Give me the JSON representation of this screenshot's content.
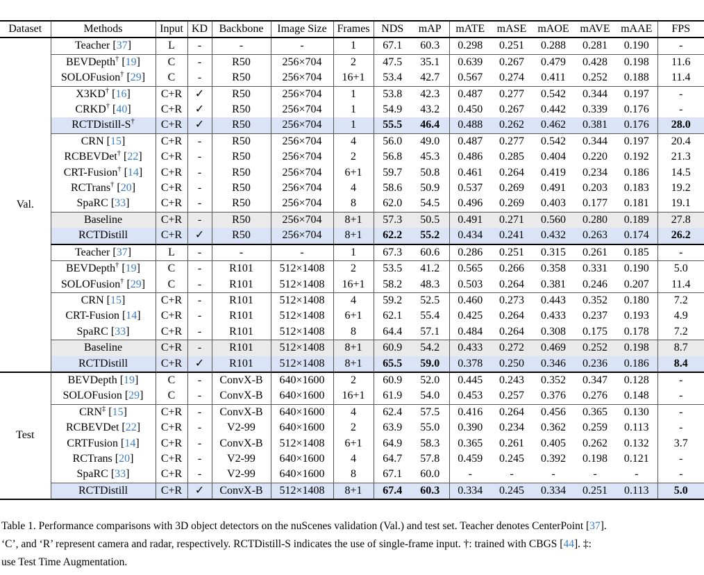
{
  "colors": {
    "highlight_blue": "#dbe3f6",
    "highlight_gray": "#eaeaea",
    "citation_blue": "#3c7dbf"
  },
  "table": {
    "columns": [
      {
        "label": "Dataset",
        "vr": true
      },
      {
        "label": "Methods",
        "vr": true
      },
      {
        "label": "Input",
        "vr": true
      },
      {
        "label": "KD",
        "vr": true
      },
      {
        "label": "Backbone",
        "vr": true
      },
      {
        "label": "Image Size",
        "vr": true
      },
      {
        "label": "Frames",
        "vr": true
      },
      {
        "label": "NDS",
        "vr": false
      },
      {
        "label": "mAP",
        "vr": true
      },
      {
        "label": "mATE",
        "vr": false
      },
      {
        "label": "mASE",
        "vr": false
      },
      {
        "label": "mAOE",
        "vr": false
      },
      {
        "label": "mAVE",
        "vr": false
      },
      {
        "label": "mAAE",
        "vr": true
      },
      {
        "label": "FPS",
        "vr": false
      }
    ],
    "sections": [
      {
        "dataset": "Val.",
        "rows": [
          {
            "method": {
              "name": "Teacher",
              "sup": "",
              "cite": "37"
            },
            "input": "L",
            "kd": "-",
            "backbone": "-",
            "image_size": "-",
            "frames": "1",
            "nds": "67.1",
            "map": "60.3",
            "mate": "0.298",
            "mase": "0.251",
            "maoe": "0.288",
            "mave": "0.281",
            "maae": "0.190",
            "fps": "-"
          },
          {
            "method": {
              "name": "BEVDepth",
              "sup": "†",
              "cite": "19"
            },
            "input": "C",
            "kd": "-",
            "backbone": "R50",
            "image_size": "256×704",
            "frames": "2",
            "nds": "47.5",
            "map": "35.1",
            "mate": "0.639",
            "mase": "0.267",
            "maoe": "0.479",
            "mave": "0.428",
            "maae": "0.198",
            "fps": "11.6",
            "rule": "thin"
          },
          {
            "method": {
              "name": "SOLOFusion",
              "sup": "†",
              "cite": "29"
            },
            "input": "C",
            "kd": "-",
            "backbone": "R50",
            "image_size": "256×704",
            "frames": "16+1",
            "nds": "53.4",
            "map": "42.7",
            "mate": "0.567",
            "mase": "0.274",
            "maoe": "0.411",
            "mave": "0.252",
            "maae": "0.188",
            "fps": "11.4"
          },
          {
            "method": {
              "name": "X3KD",
              "sup": "†",
              "cite": "16"
            },
            "input": "C+R",
            "kd": "✓",
            "backbone": "R50",
            "image_size": "256×704",
            "frames": "1",
            "nds": "53.8",
            "map": "42.3",
            "mate": "0.487",
            "mase": "0.277",
            "maoe": "0.542",
            "mave": "0.344",
            "maae": "0.197",
            "fps": "-",
            "rule": "thin"
          },
          {
            "method": {
              "name": "CRKD",
              "sup": "†",
              "cite": "40"
            },
            "input": "C+R",
            "kd": "✓",
            "backbone": "R50",
            "image_size": "256×704",
            "frames": "1",
            "nds": "54.9",
            "map": "43.2",
            "mate": "0.450",
            "mase": "0.267",
            "maoe": "0.442",
            "mave": "0.339",
            "maae": "0.176",
            "fps": "-"
          },
          {
            "method": {
              "name": "RCTDistill-S",
              "sup": "†",
              "cite": ""
            },
            "input": "C+R",
            "kd": "✓",
            "backbone": "R50",
            "image_size": "256×704",
            "frames": "1",
            "nds": "55.5",
            "map": "46.4",
            "mate": "0.488",
            "mase": "0.262",
            "maoe": "0.462",
            "mave": "0.381",
            "maae": "0.176",
            "fps": "28.0",
            "hl": "blue",
            "bold": true
          },
          {
            "method": {
              "name": "CRN",
              "sup": "",
              "cite": "15"
            },
            "input": "C+R",
            "kd": "-",
            "backbone": "R50",
            "image_size": "256×704",
            "frames": "4",
            "nds": "56.0",
            "map": "49.0",
            "mate": "0.487",
            "mase": "0.277",
            "maoe": "0.542",
            "mave": "0.344",
            "maae": "0.197",
            "fps": "20.4",
            "rule": "thin"
          },
          {
            "method": {
              "name": "RCBEVDet",
              "sup": "†",
              "cite": "22"
            },
            "input": "C+R",
            "kd": "-",
            "backbone": "R50",
            "image_size": "256×704",
            "frames": "2",
            "nds": "56.8",
            "map": "45.3",
            "mate": "0.486",
            "mase": "0.285",
            "maoe": "0.404",
            "mave": "0.220",
            "maae": "0.192",
            "fps": "21.3"
          },
          {
            "method": {
              "name": "CRT-Fusion",
              "sup": "†",
              "cite": "14"
            },
            "input": "C+R",
            "kd": "-",
            "backbone": "R50",
            "image_size": "256×704",
            "frames": "6+1",
            "nds": "59.7",
            "map": "50.8",
            "mate": "0.461",
            "mase": "0.264",
            "maoe": "0.419",
            "mave": "0.234",
            "maae": "0.186",
            "fps": "14.5"
          },
          {
            "method": {
              "name": "RCTrans",
              "sup": "†",
              "cite": "20"
            },
            "input": "C+R",
            "kd": "-",
            "backbone": "R50",
            "image_size": "256×704",
            "frames": "4",
            "nds": "58.6",
            "map": "50.9",
            "mate": "0.537",
            "mase": "0.269",
            "maoe": "0.491",
            "mave": "0.203",
            "maae": "0.183",
            "fps": "19.2"
          },
          {
            "method": {
              "name": "SpaRC",
              "sup": "",
              "cite": "33"
            },
            "input": "C+R",
            "kd": "-",
            "backbone": "R50",
            "image_size": "256×704",
            "frames": "8",
            "nds": "62.0",
            "map": "54.5",
            "mate": "0.496",
            "mase": "0.269",
            "maoe": "0.403",
            "mave": "0.177",
            "maae": "0.181",
            "fps": "19.1"
          },
          {
            "method": {
              "name": "Baseline",
              "sup": "",
              "cite": ""
            },
            "input": "C+R",
            "kd": "-",
            "backbone": "R50",
            "image_size": "256×704",
            "frames": "8+1",
            "nds": "57.3",
            "map": "50.5",
            "mate": "0.491",
            "mase": "0.271",
            "maoe": "0.560",
            "mave": "0.280",
            "maae": "0.189",
            "fps": "27.8",
            "hl": "gray",
            "rule": "thin"
          },
          {
            "method": {
              "name": "RCTDistill",
              "sup": "",
              "cite": ""
            },
            "input": "C+R",
            "kd": "✓",
            "backbone": "R50",
            "image_size": "256×704",
            "frames": "8+1",
            "nds": "62.2",
            "map": "55.2",
            "mate": "0.434",
            "mase": "0.241",
            "maoe": "0.432",
            "mave": "0.263",
            "maae": "0.174",
            "fps": "26.2",
            "hl": "blue",
            "bold": true
          },
          {
            "method": {
              "name": "Teacher",
              "sup": "",
              "cite": "37"
            },
            "input": "L",
            "kd": "-",
            "backbone": "-",
            "image_size": "-",
            "frames": "1",
            "nds": "67.3",
            "map": "60.6",
            "mate": "0.286",
            "mase": "0.251",
            "maoe": "0.315",
            "mave": "0.261",
            "maae": "0.185",
            "fps": "-",
            "rule": "thick"
          },
          {
            "method": {
              "name": "BEVDepth",
              "sup": "†",
              "cite": "19"
            },
            "input": "C",
            "kd": "-",
            "backbone": "R101",
            "image_size": "512×1408",
            "frames": "2",
            "nds": "53.5",
            "map": "41.2",
            "mate": "0.565",
            "mase": "0.266",
            "maoe": "0.358",
            "mave": "0.331",
            "maae": "0.190",
            "fps": "5.0",
            "rule": "thin"
          },
          {
            "method": {
              "name": "SOLOFusion",
              "sup": "†",
              "cite": "29"
            },
            "input": "C",
            "kd": "-",
            "backbone": "R101",
            "image_size": "512×1408",
            "frames": "16+1",
            "nds": "58.2",
            "map": "48.3",
            "mate": "0.503",
            "mase": "0.264",
            "maoe": "0.381",
            "mave": "0.246",
            "maae": "0.207",
            "fps": "11.4"
          },
          {
            "method": {
              "name": "CRN",
              "sup": "",
              "cite": "15"
            },
            "input": "C+R",
            "kd": "-",
            "backbone": "R101",
            "image_size": "512×1408",
            "frames": "4",
            "nds": "59.2",
            "map": "52.5",
            "mate": "0.460",
            "mase": "0.273",
            "maoe": "0.443",
            "mave": "0.352",
            "maae": "0.180",
            "fps": "7.2",
            "rule": "thin"
          },
          {
            "method": {
              "name": "CRT-Fusion",
              "sup": "",
              "cite": "14"
            },
            "input": "C+R",
            "kd": "-",
            "backbone": "R101",
            "image_size": "512×1408",
            "frames": "6+1",
            "nds": "62.1",
            "map": "55.4",
            "mate": "0.425",
            "mase": "0.264",
            "maoe": "0.433",
            "mave": "0.237",
            "maae": "0.193",
            "fps": "4.9"
          },
          {
            "method": {
              "name": "SpaRC",
              "sup": "",
              "cite": "33"
            },
            "input": "C+R",
            "kd": "-",
            "backbone": "R101",
            "image_size": "512×1408",
            "frames": "8",
            "nds": "64.4",
            "map": "57.1",
            "mate": "0.484",
            "mase": "0.264",
            "maoe": "0.308",
            "mave": "0.175",
            "maae": "0.178",
            "fps": "7.2"
          },
          {
            "method": {
              "name": "Baseline",
              "sup": "",
              "cite": ""
            },
            "input": "C+R",
            "kd": "-",
            "backbone": "R101",
            "image_size": "512×1408",
            "frames": "8+1",
            "nds": "60.9",
            "map": "54.2",
            "mate": "0.433",
            "mase": "0.272",
            "maoe": "0.469",
            "mave": "0.252",
            "maae": "0.198",
            "fps": "8.7",
            "hl": "gray",
            "rule": "thin"
          },
          {
            "method": {
              "name": "RCTDistill",
              "sup": "",
              "cite": ""
            },
            "input": "C+R",
            "kd": "✓",
            "backbone": "R101",
            "image_size": "512×1408",
            "frames": "8+1",
            "nds": "65.5",
            "map": "59.0",
            "mate": "0.378",
            "mase": "0.250",
            "maoe": "0.346",
            "mave": "0.236",
            "maae": "0.186",
            "fps": "8.4",
            "hl": "blue",
            "bold": true
          }
        ]
      },
      {
        "dataset": "Test",
        "rows": [
          {
            "method": {
              "name": "BEVDepth",
              "sup": "",
              "cite": "19"
            },
            "input": "C",
            "kd": "-",
            "backbone": "ConvX-B",
            "image_size": "640×1600",
            "frames": "2",
            "nds": "60.9",
            "map": "52.0",
            "mate": "0.445",
            "mase": "0.243",
            "maoe": "0.352",
            "mave": "0.347",
            "maae": "0.128",
            "fps": "-",
            "rule": "thick"
          },
          {
            "method": {
              "name": "SOLOFusion",
              "sup": "",
              "cite": "29"
            },
            "input": "C",
            "kd": "-",
            "backbone": "ConvX-B",
            "image_size": "640×1600",
            "frames": "16+1",
            "nds": "61.9",
            "map": "54.0",
            "mate": "0.453",
            "mase": "0.257",
            "maoe": "0.376",
            "mave": "0.276",
            "maae": "0.148",
            "fps": "-"
          },
          {
            "method": {
              "name": "CRN",
              "sup": "‡",
              "cite": "15"
            },
            "input": "C+R",
            "kd": "-",
            "backbone": "ConvX-B",
            "image_size": "640×1600",
            "frames": "4",
            "nds": "62.4",
            "map": "57.5",
            "mate": "0.416",
            "mase": "0.264",
            "maoe": "0.456",
            "mave": "0.365",
            "maae": "0.130",
            "fps": "-",
            "rule": "thin"
          },
          {
            "method": {
              "name": "RCBEVDet",
              "sup": "",
              "cite": "22"
            },
            "input": "C+R",
            "kd": "-",
            "backbone": "V2-99",
            "image_size": "640×1600",
            "frames": "2",
            "nds": "63.9",
            "map": "55.0",
            "mate": "0.390",
            "mase": "0.234",
            "maoe": "0.362",
            "mave": "0.259",
            "maae": "0.113",
            "fps": "-"
          },
          {
            "method": {
              "name": "CRTFusion",
              "sup": "",
              "cite": "14"
            },
            "input": "C+R",
            "kd": "-",
            "backbone": "ConvX-B",
            "image_size": "512×1408",
            "frames": "6+1",
            "nds": "64.9",
            "map": "58.3",
            "mate": "0.365",
            "mase": "0.261",
            "maoe": "0.405",
            "mave": "0.262",
            "maae": "0.132",
            "fps": "3.7"
          },
          {
            "method": {
              "name": "RCTrans",
              "sup": "",
              "cite": "20"
            },
            "input": "C+R",
            "kd": "-",
            "backbone": "V2-99",
            "image_size": "640×1600",
            "frames": "4",
            "nds": "64.7",
            "map": "57.8",
            "mate": "0.459",
            "mase": "0.245",
            "maoe": "0.392",
            "mave": "0.198",
            "maae": "0.121",
            "fps": "-"
          },
          {
            "method": {
              "name": "SpaRC",
              "sup": "",
              "cite": "33"
            },
            "input": "C+R",
            "kd": "-",
            "backbone": "V2-99",
            "image_size": "640×1600",
            "frames": "8",
            "nds": "67.1",
            "map": "60.0",
            "mate": "-",
            "mase": "-",
            "maoe": "-",
            "mave": "-",
            "maae": "-",
            "fps": "-"
          },
          {
            "method": {
              "name": "RCTDistill",
              "sup": "",
              "cite": ""
            },
            "input": "C+R",
            "kd": "✓",
            "backbone": "ConvX-B",
            "image_size": "512×1408",
            "frames": "8+1",
            "nds": "67.4",
            "map": "60.3",
            "mate": "0.334",
            "mase": "0.245",
            "maoe": "0.334",
            "mave": "0.251",
            "maae": "0.113",
            "fps": "5.0",
            "hl": "blue",
            "bold": true,
            "rule": "thin"
          }
        ]
      }
    ]
  },
  "caption": {
    "lines": [
      [
        {
          "t": "Table 1. Performance comparisons with 3D object detectors on the nuScenes validation (Val.) and test set. Teacher denotes CenterPoint ["
        },
        {
          "t": "37",
          "cite": true
        },
        {
          "t": "]."
        }
      ],
      [
        {
          "t": "‘C’, and ‘R’ represent camera and radar, respectively. RCTDistill-S indicates the use of single-frame input. †: trained with CBGS ["
        },
        {
          "t": "44",
          "cite": true
        },
        {
          "t": "]. ‡:"
        }
      ],
      [
        {
          "t": "use Test Time Augmentation."
        }
      ]
    ]
  }
}
